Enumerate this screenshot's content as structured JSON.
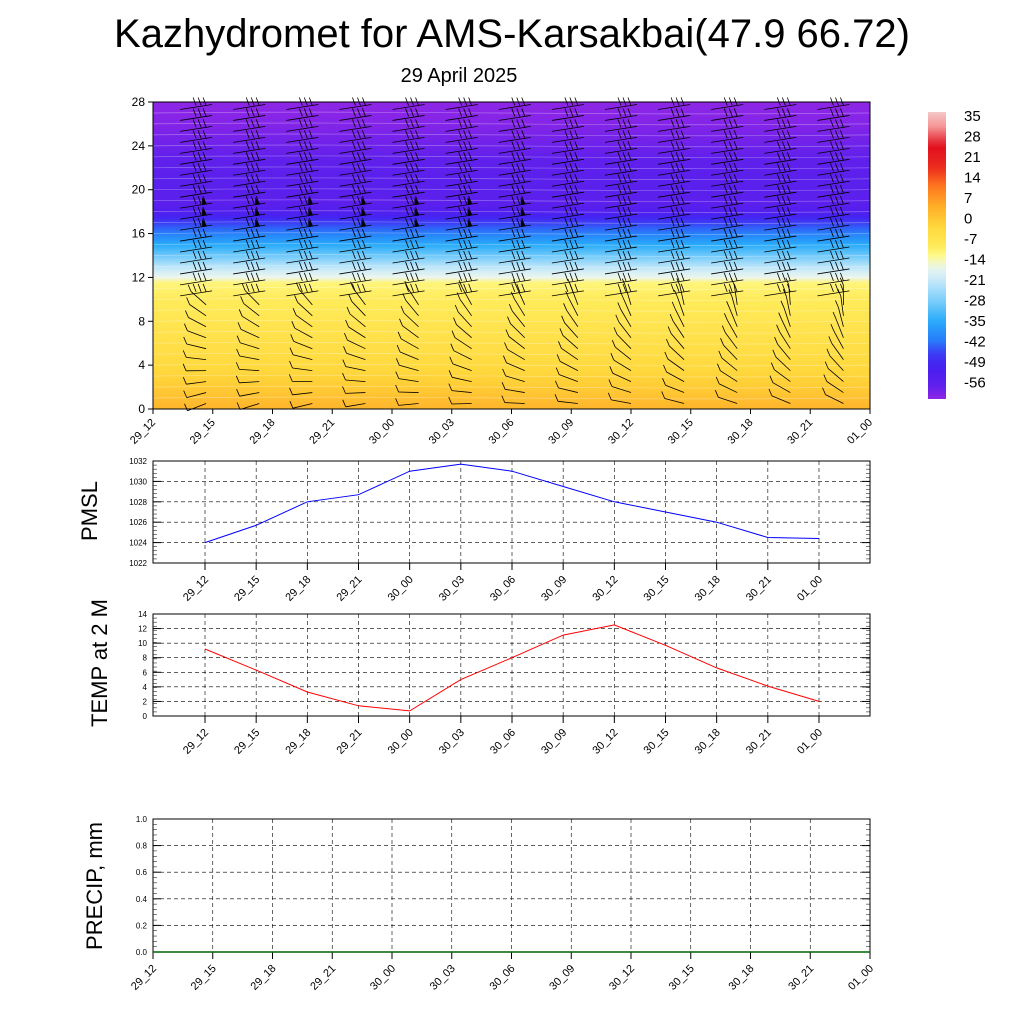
{
  "title": "Kazhydromet for AMS-Karsakbai(47.9 66.72)",
  "subtitle": "29 April 2025",
  "chart_data": [
    {
      "type": "heatmap",
      "name": "temperature-wind-cross-section",
      "y_ticks": [
        "0",
        "4",
        "8",
        "12",
        "16",
        "20",
        "24",
        "28"
      ],
      "ylim": [
        0,
        28
      ],
      "x_ticks": [
        "29_12",
        "29_15",
        "29_18",
        "29_21",
        "30_00",
        "30_03",
        "30_06",
        "30_09",
        "30_12",
        "30_15",
        "30_18",
        "30_21",
        "01_00"
      ],
      "colorbar_labels": [
        "35",
        "28",
        "21",
        "14",
        "7",
        "0",
        "-7",
        "-14",
        "-21",
        "-28",
        "-35",
        "-42",
        "-49",
        "-56"
      ],
      "colorbar_range": [
        -60,
        40
      ],
      "temperature_profile": {
        "levels": [
          0,
          1,
          2,
          4,
          6,
          8,
          10,
          11.5,
          12,
          13,
          14,
          15,
          16,
          17,
          18,
          19,
          20,
          22,
          24,
          26,
          28
        ],
        "values": [
          6,
          4,
          2,
          -1,
          -3,
          -5,
          -7,
          -9,
          -14,
          -20,
          -27,
          -33,
          -39,
          -44,
          -52,
          -55,
          -54,
          -55,
          -57,
          -59,
          -60
        ]
      },
      "wind_barb_columns_x": [
        "29_12",
        "29_15",
        "29_18",
        "29_21",
        "30_00",
        "30_03",
        "30_06",
        "30_09",
        "30_12",
        "30_15",
        "30_18",
        "30_21",
        "01_00"
      ],
      "pennant_level_range": [
        16,
        19
      ]
    },
    {
      "type": "line",
      "name": "pmsl",
      "ylabel": "PMSL",
      "ylim": [
        1022,
        1032
      ],
      "y_ticks": [
        "1022",
        "1024",
        "1026",
        "1028",
        "1030",
        "1032"
      ],
      "x": [
        "29_12",
        "29_15",
        "29_18",
        "29_21",
        "30_00",
        "30_03",
        "30_06",
        "30_09",
        "30_12",
        "30_15",
        "30_18",
        "30_21",
        "01_00"
      ],
      "values": [
        1024.0,
        1025.7,
        1028.0,
        1028.7,
        1031.0,
        1031.7,
        1031.0,
        1029.5,
        1028.0,
        1027.0,
        1026.0,
        1024.5,
        1024.4
      ],
      "color": "#0000ff",
      "grid": true
    },
    {
      "type": "line",
      "name": "temp-2m",
      "ylabel": "TEMP at 2 M",
      "ylim": [
        0,
        14
      ],
      "y_ticks": [
        "0",
        "2",
        "4",
        "6",
        "8",
        "10",
        "12",
        "14"
      ],
      "x": [
        "29_12",
        "29_15",
        "29_18",
        "29_21",
        "30_00",
        "30_03",
        "30_06",
        "30_09",
        "30_12",
        "30_15",
        "30_18",
        "30_21",
        "01_00"
      ],
      "values": [
        9.2,
        6.3,
        3.3,
        1.4,
        0.7,
        5.0,
        8.0,
        11.1,
        12.5,
        9.7,
        6.6,
        4.1,
        2.0
      ],
      "color": "#ff0000",
      "grid": true
    },
    {
      "type": "line",
      "name": "precip",
      "ylabel": "PRECIP, mm",
      "ylim": [
        0,
        1.0
      ],
      "y_ticks": [
        "0.0",
        "0.2",
        "0.4",
        "0.6",
        "0.8",
        "1.0"
      ],
      "x_ticks": [
        "29_12",
        "29_15",
        "29_18",
        "29_21",
        "30_00",
        "30_03",
        "30_06",
        "30_09",
        "30_12",
        "30_15",
        "30_18",
        "30_21",
        "01_00"
      ],
      "values": [
        0,
        0,
        0,
        0,
        0,
        0,
        0,
        0,
        0,
        0,
        0,
        0,
        0
      ],
      "color": "#006400",
      "grid": true
    }
  ]
}
